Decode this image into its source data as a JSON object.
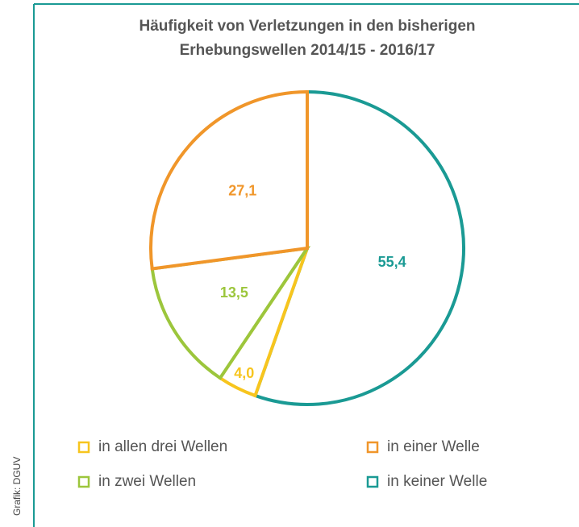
{
  "chart_data": {
    "type": "pie",
    "title": "Häufigkeit von Verletzungen in den bisherigen Erhebungswellen 2014/15 - 2016/17",
    "categories": [
      "in keiner Welle",
      "in allen drei Wellen",
      "in zwei Wellen",
      "in einer Welle"
    ],
    "values": [
      55.4,
      4.0,
      13.5,
      27.1
    ],
    "value_labels": [
      "55,4",
      "4,0",
      "13,5",
      "27,1"
    ],
    "colors": [
      "#1a9a94",
      "#f7c51e",
      "#9cc63c",
      "#f0962a"
    ],
    "source": "Grafik: DGUV"
  }
}
